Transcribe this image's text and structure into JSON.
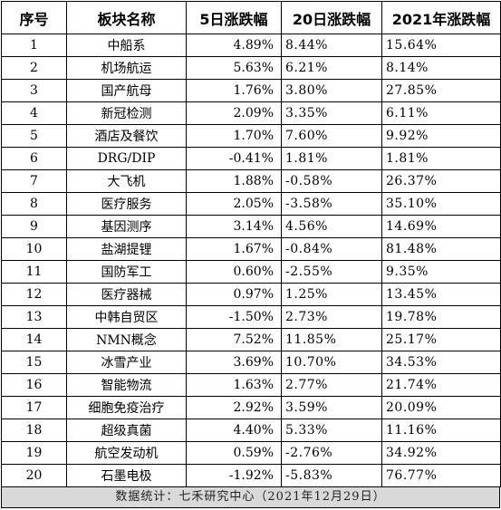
{
  "table": {
    "headers": [
      "序号",
      "板块名称",
      "5日涨跌幅",
      "20日涨跌幅",
      "2021年涨跌幅"
    ],
    "rows": [
      [
        "1",
        "中船系",
        "4.89%",
        "8.44%",
        "15.64%"
      ],
      [
        "2",
        "机场航运",
        "5.63%",
        "6.21%",
        "8.14%"
      ],
      [
        "3",
        "国产航母",
        "1.76%",
        "3.80%",
        "27.85%"
      ],
      [
        "4",
        "新冠检测",
        "2.09%",
        "3.35%",
        "6.11%"
      ],
      [
        "5",
        "酒店及餐饮",
        "1.70%",
        "7.60%",
        "9.92%"
      ],
      [
        "6",
        "DRG/DIP",
        "-0.41%",
        "1.81%",
        "1.81%"
      ],
      [
        "7",
        "大飞机",
        "1.88%",
        "-0.58%",
        "26.37%"
      ],
      [
        "8",
        "医疗服务",
        "2.05%",
        "-3.58%",
        "35.10%"
      ],
      [
        "9",
        "基因测序",
        "3.14%",
        "4.56%",
        "14.69%"
      ],
      [
        "10",
        "盐湖提锂",
        "1.67%",
        "-0.84%",
        "81.48%"
      ],
      [
        "11",
        "国防军工",
        "0.60%",
        "-2.55%",
        "9.35%"
      ],
      [
        "12",
        "医疗器械",
        "0.97%",
        "1.25%",
        "13.45%"
      ],
      [
        "13",
        "中韩自贸区",
        "-1.50%",
        "2.73%",
        "19.78%"
      ],
      [
        "14",
        "NMN概念",
        "7.52%",
        "11.85%",
        "25.17%"
      ],
      [
        "15",
        "冰雪产业",
        "3.69%",
        "10.70%",
        "34.53%"
      ],
      [
        "16",
        "智能物流",
        "1.63%",
        "2.77%",
        "21.74%"
      ],
      [
        "17",
        "细胞免疫治疗",
        "2.92%",
        "3.59%",
        "20.09%"
      ],
      [
        "18",
        "超级真菌",
        "4.40%",
        "5.33%",
        "11.16%"
      ],
      [
        "19",
        "航空发动机",
        "0.59%",
        "-2.76%",
        "34.92%"
      ],
      [
        "20",
        "石墨电极",
        "-1.92%",
        "-5.83%",
        "76.77%"
      ]
    ]
  },
  "footer": {
    "text": "数据统计：七禾研究中心（2021年12月29日）"
  }
}
